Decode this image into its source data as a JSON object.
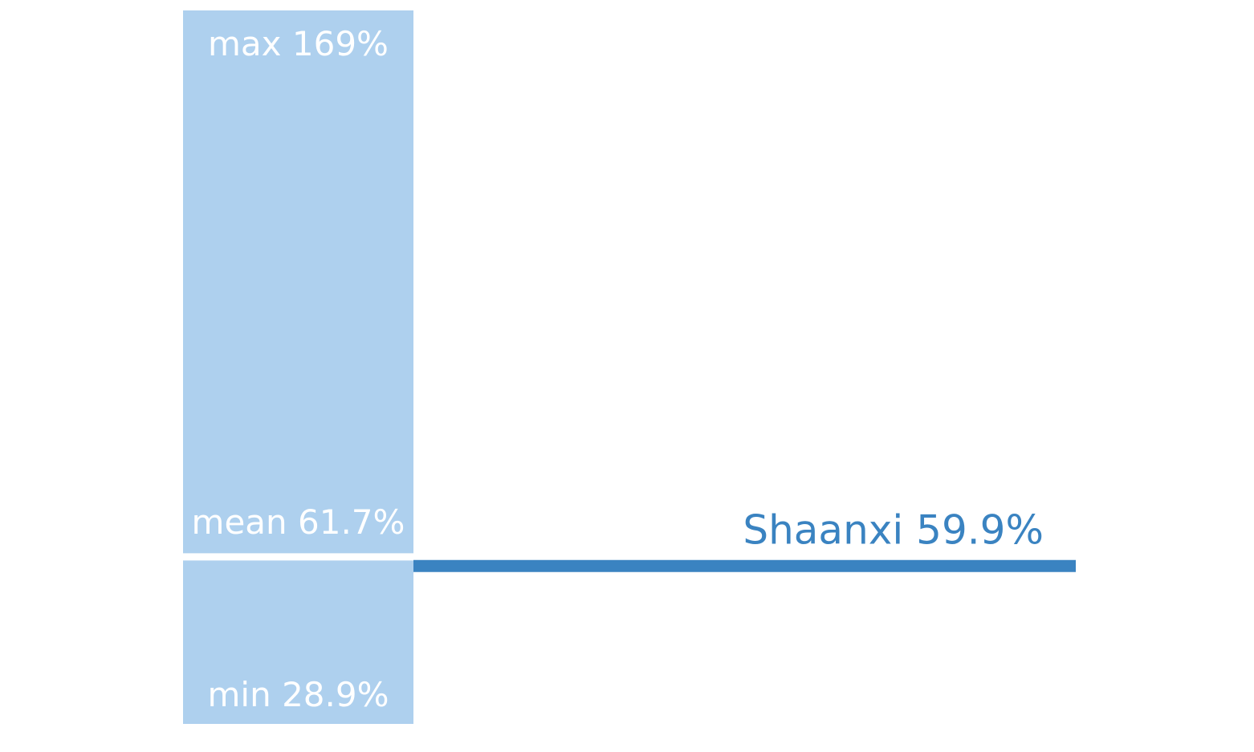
{
  "chart_data": {
    "type": "range",
    "stats": [
      {
        "name": "max",
        "value": 169,
        "value_label": "169%"
      },
      {
        "name": "mean",
        "value": 61.7,
        "value_label": "61.7%"
      },
      {
        "name": "min",
        "value": 28.9,
        "value_label": "28.9%"
      }
    ],
    "color": "#aed0ee",
    "highlight": {
      "name": "Shaanxi",
      "value": 59.9,
      "value_label": "59.9%",
      "color": "#3a83c1"
    }
  }
}
